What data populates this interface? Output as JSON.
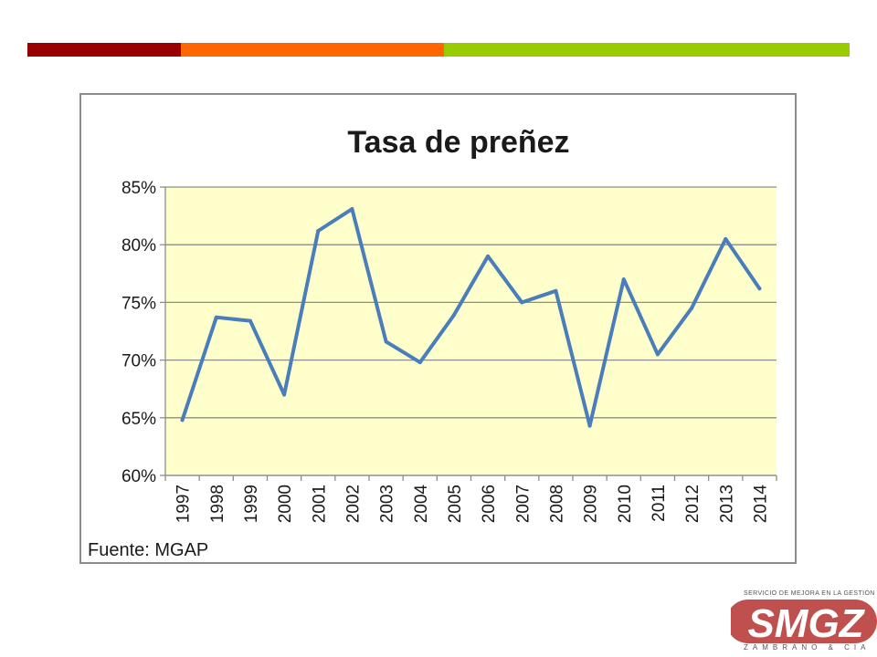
{
  "theme": {
    "bar_colors": [
      "#990000",
      "#ff6600",
      "#99cc00"
    ],
    "plot_bg": "#ffffcc",
    "line_color": "#4a7ebb",
    "grid_color": "#8c8c8c",
    "logo_color": "#c0504d"
  },
  "source": "Fuente: MGAP",
  "logo": {
    "tagline": "SERVICIO DE MEJORA EN LA GESTIÓN",
    "name": "SMGZ",
    "subtitle": "ZAMBRANO & CIA"
  },
  "chart_data": {
    "type": "line",
    "title": "Tasa de preñez",
    "xlabel": "",
    "ylabel": "",
    "categories": [
      "1997",
      "1998",
      "1999",
      "2000",
      "2001",
      "2002",
      "2003",
      "2004",
      "2005",
      "2006",
      "2007",
      "2008",
      "2009",
      "2010",
      "2011",
      "2012",
      "2013",
      "2014"
    ],
    "series": [
      {
        "values": [
          64.8,
          73.7,
          73.4,
          67.0,
          81.2,
          83.1,
          71.6,
          69.8,
          73.9,
          79.0,
          75.0,
          76.0,
          64.3,
          77.0,
          70.5,
          74.5,
          80.5,
          76.2
        ]
      }
    ],
    "ylim": [
      60,
      85
    ],
    "yticks": [
      60,
      65,
      70,
      75,
      80,
      85
    ],
    "ytick_labels": [
      "60%",
      "65%",
      "70%",
      "75%",
      "80%",
      "85%"
    ],
    "grid": true,
    "legend": "none"
  }
}
